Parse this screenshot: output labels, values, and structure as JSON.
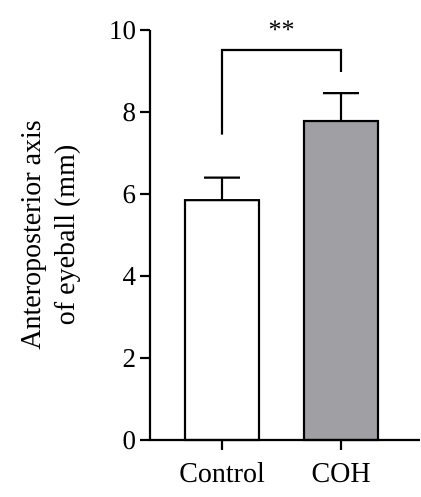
{
  "chart_data": {
    "type": "bar",
    "categories": [
      "Control",
      "COH"
    ],
    "values": [
      5.85,
      7.78
    ],
    "errors": [
      0.55,
      0.68
    ],
    "bar_colors": [
      "#ffffff",
      "#a0a0a4"
    ],
    "bar_edge_color": "#000000",
    "ylim": [
      0,
      10
    ],
    "yticks": [
      0,
      2,
      4,
      6,
      8,
      10
    ],
    "ylabel_lines": [
      "Anteroposterior axis",
      "of eyeball (mm)"
    ],
    "xlabel": "",
    "title": "",
    "grid": false,
    "significance": {
      "between": [
        0,
        1
      ],
      "label": "**"
    }
  }
}
